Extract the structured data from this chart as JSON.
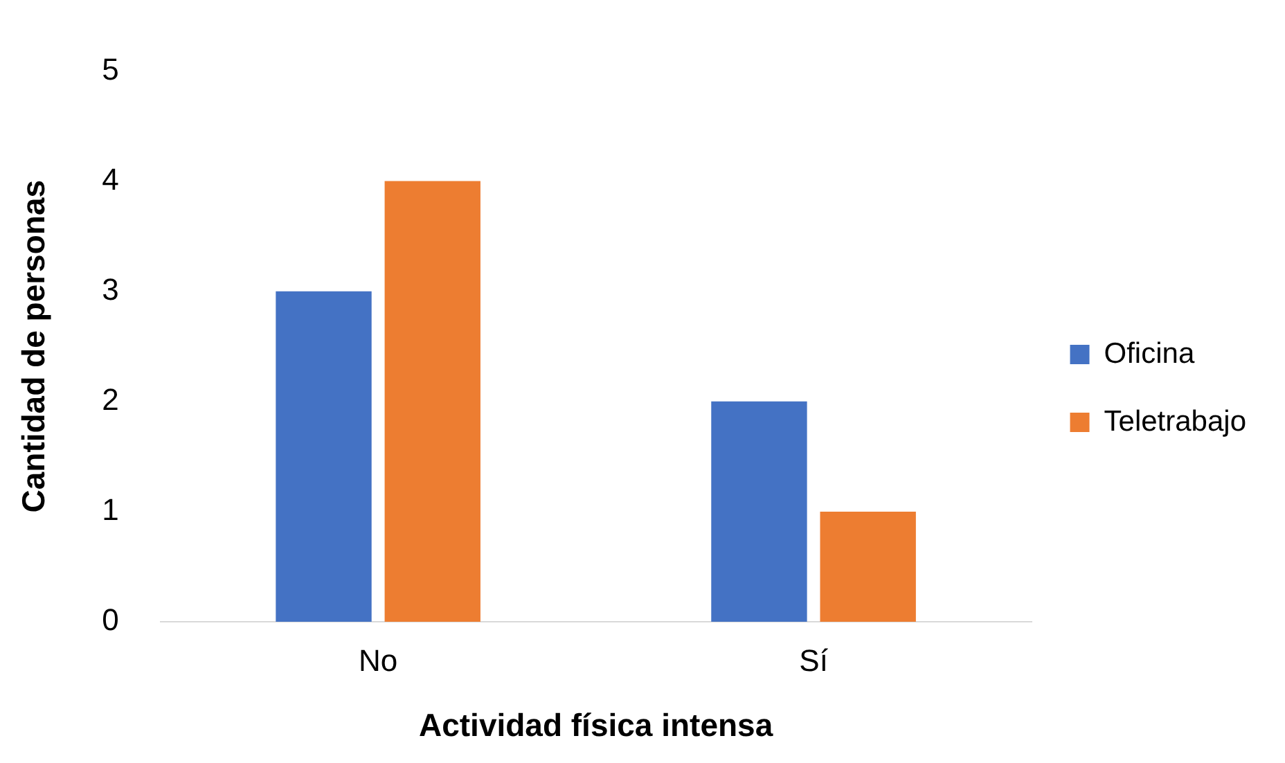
{
  "chart_data": {
    "type": "bar",
    "xlabel": "Actividad física intensa",
    "ylabel": "Cantidad de personas",
    "categories": [
      "No",
      "Sí"
    ],
    "series": [
      {
        "name": "Oficina",
        "color": "#4472c4",
        "values": [
          3,
          2
        ]
      },
      {
        "name": "Teletrabajo",
        "color": "#ed7d31",
        "values": [
          4,
          1
        ]
      }
    ],
    "ylim": [
      0,
      5
    ],
    "yticks": [
      0,
      1,
      2,
      3,
      4,
      5
    ],
    "legend": "right"
  }
}
